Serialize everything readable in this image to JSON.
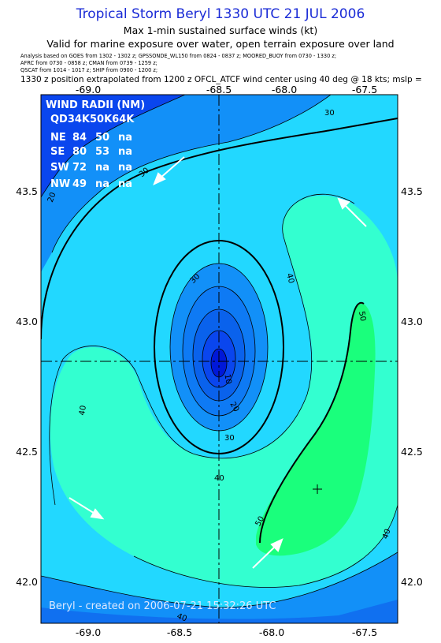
{
  "header": {
    "title": "Tropical Storm Beryl 1330 UTC 21 JUL 2006",
    "subtitle": "Max 1-min sustained surface winds (kt)",
    "validity": "Valid for marine exposure over water, open terrain exposure over land",
    "analysis_line1": "Analysis based on  GOES from 1302 - 1302 z;  GPSSONDE_WL150 from 0824 - 0837 z;  MOORED_BUOY from 0730 - 1330 z;",
    "analysis_line2": "AFRC from 0730 - 0858 z;  CMAN from 0739 - 1259 z;",
    "analysis_line3": "QSCAT from 1014 - 1017 z;  SHIP from 0900 - 1200 z;",
    "extrapolation": "1330 z position extrapolated from 1200 z OFCL_ATCF wind center using 40 deg @ 18 kts; mslp ="
  },
  "axes": {
    "x_ticks": [
      "-69.0",
      "-68.5",
      "-68.0",
      "-67.5"
    ],
    "y_ticks": [
      "43.5",
      "43.0",
      "42.5",
      "42.0"
    ]
  },
  "wind_radii": {
    "heading": "WIND RADII (NM)",
    "columns": "QD34K50K64K",
    "rows": [
      {
        "quad": "NE",
        "r34": "84",
        "r50": "50",
        "r64": "na"
      },
      {
        "quad": "SE",
        "r34": "80",
        "r50": "53",
        "r64": "na"
      },
      {
        "quad": "SW",
        "r34": "72",
        "r50": "na",
        "r64": "na"
      },
      {
        "quad": "NW",
        "r34": "49",
        "r50": "na",
        "r64": "na"
      }
    ]
  },
  "contour_labels": [
    "30",
    "20",
    "30",
    "40",
    "30",
    "10",
    "20",
    "30",
    "40",
    "40",
    "50",
    "50",
    "40",
    "40"
  ],
  "credit": "Beryl - created on 2006-07-21 15:32:26 UTC",
  "colors": {
    "title": "#1a2bd6",
    "band_10_20": "#0a46ee",
    "band_20_30": "#1290f8",
    "band_30_40": "#22d8ff",
    "band_40_50": "#33ffd0",
    "band_50_plus": "#1aff7c",
    "core": "#0018d8"
  }
}
